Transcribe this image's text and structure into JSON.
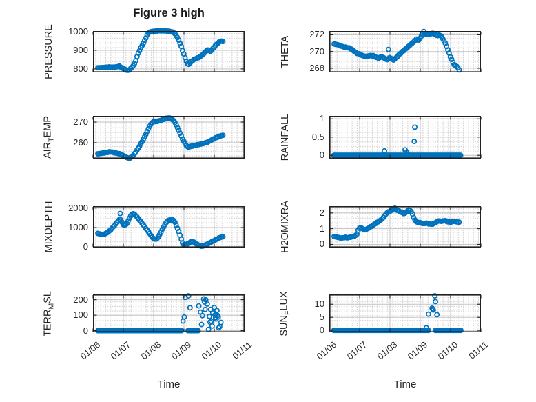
{
  "figure": {
    "title": "Figure 3 high",
    "x_axis_label": "Time",
    "x_tick_labels": [
      "01/06",
      "01/07",
      "01/08",
      "01/09",
      "01/10",
      "01/11"
    ],
    "x_tick_days": [
      6,
      7,
      8,
      9,
      10,
      11
    ],
    "x_range_days": [
      6,
      11
    ],
    "marker_color": "#0072BD",
    "axis_color": "#212121",
    "major_grid_color": "#c3c3c3",
    "minor_grid_color": "#cdcdcd",
    "text_color": "#262626"
  },
  "chart_data": [
    {
      "type": "scatter",
      "name": "PRESSURE",
      "marker": "o",
      "label_parts": [
        {
          "t": "PRESSURE"
        }
      ],
      "ylim": [
        781,
        1004
      ],
      "yticks": [
        800,
        900,
        1000
      ],
      "ytick_labels": [
        "800",
        "900",
        "1000"
      ],
      "series_mode": "continuous",
      "anchors": [
        [
          6.16,
          806
        ],
        [
          6.3,
          807
        ],
        [
          6.45,
          809
        ],
        [
          6.6,
          810
        ],
        [
          6.7,
          808
        ],
        [
          6.8,
          812
        ],
        [
          6.87,
          815
        ],
        [
          6.95,
          806
        ],
        [
          7.05,
          798
        ],
        [
          7.14,
          791
        ],
        [
          7.22,
          797
        ],
        [
          7.3,
          812
        ],
        [
          7.38,
          830
        ],
        [
          7.48,
          880
        ],
        [
          7.58,
          915
        ],
        [
          7.66,
          938
        ],
        [
          7.74,
          966
        ],
        [
          7.8,
          988
        ],
        [
          7.85,
          997
        ],
        [
          7.92,
          1001
        ],
        [
          8.0,
          1003
        ],
        [
          8.1,
          1004
        ],
        [
          8.2,
          1006
        ],
        [
          8.3,
          1006
        ],
        [
          8.4,
          1005
        ],
        [
          8.5,
          1003
        ],
        [
          8.6,
          1000
        ],
        [
          8.69,
          993
        ],
        [
          8.76,
          975
        ],
        [
          8.81,
          962
        ],
        [
          8.87,
          938
        ],
        [
          8.92,
          916
        ],
        [
          8.97,
          890
        ],
        [
          9.02,
          868
        ],
        [
          9.07,
          844
        ],
        [
          9.13,
          822
        ],
        [
          9.18,
          828
        ],
        [
          9.25,
          840
        ],
        [
          9.31,
          849
        ],
        [
          9.4,
          856
        ],
        [
          9.5,
          862
        ],
        [
          9.6,
          874
        ],
        [
          9.7,
          890
        ],
        [
          9.78,
          903
        ],
        [
          9.83,
          899
        ],
        [
          9.88,
          894
        ],
        [
          9.94,
          906
        ],
        [
          10.0,
          918
        ],
        [
          10.06,
          930
        ],
        [
          10.13,
          940
        ],
        [
          10.2,
          949
        ],
        [
          10.26,
          950
        ],
        [
          10.31,
          944
        ]
      ]
    },
    {
      "type": "scatter",
      "name": "THETA",
      "marker": "o",
      "label_parts": [
        {
          "t": "THETA"
        }
      ],
      "ylim": [
        267.5,
        272.45
      ],
      "yticks": [
        268,
        270,
        272
      ],
      "ytick_labels": [
        "268",
        "270",
        "272"
      ],
      "series_mode": "continuous",
      "anchors": [
        [
          6.16,
          270.9
        ],
        [
          6.3,
          270.8
        ],
        [
          6.42,
          270.6
        ],
        [
          6.55,
          270.5
        ],
        [
          6.68,
          270.4
        ],
        [
          6.8,
          270.1
        ],
        [
          6.9,
          269.8
        ],
        [
          7.0,
          269.7
        ],
        [
          7.1,
          269.5
        ],
        [
          7.2,
          269.4
        ],
        [
          7.32,
          269.5
        ],
        [
          7.45,
          269.5
        ],
        [
          7.55,
          269.3
        ],
        [
          7.63,
          269.2
        ],
        [
          7.72,
          269.4
        ],
        [
          7.82,
          269.2
        ],
        [
          7.9,
          269.0
        ],
        [
          8.0,
          269.3
        ],
        [
          8.06,
          269.1
        ],
        [
          8.12,
          269.0
        ],
        [
          8.22,
          269.3
        ],
        [
          8.32,
          269.7
        ],
        [
          8.45,
          270.1
        ],
        [
          8.58,
          270.5
        ],
        [
          8.7,
          270.9
        ],
        [
          8.8,
          271.2
        ],
        [
          8.87,
          271.5
        ],
        [
          8.93,
          271.3
        ],
        [
          9.0,
          271.6
        ],
        [
          9.06,
          272.0
        ],
        [
          9.11,
          272.4
        ],
        [
          9.17,
          272.1
        ],
        [
          9.25,
          272.0
        ],
        [
          9.33,
          272.1
        ],
        [
          9.42,
          272.2
        ],
        [
          9.5,
          272.0
        ],
        [
          9.57,
          271.9
        ],
        [
          9.63,
          272.0
        ],
        [
          9.7,
          271.8
        ],
        [
          9.78,
          271.3
        ],
        [
          9.85,
          270.8
        ],
        [
          9.92,
          270.1
        ],
        [
          9.98,
          269.5
        ],
        [
          10.04,
          269.0
        ],
        [
          10.1,
          268.5
        ],
        [
          10.16,
          268.3
        ],
        [
          10.22,
          268.2
        ],
        [
          10.27,
          267.9
        ],
        [
          10.31,
          267.6
        ]
      ],
      "points": [
        [
          7.95,
          270.25
        ]
      ]
    },
    {
      "type": "scatter",
      "name": "AIR_TEMP",
      "marker": "o",
      "label_parts": [
        {
          "t": "AIR"
        },
        {
          "t": "T",
          "sub": true
        },
        {
          "t": "EMP"
        }
      ],
      "ylim": [
        252.3,
        273.0
      ],
      "yticks": [
        260,
        270
      ],
      "ytick_labels": [
        "260",
        "270"
      ],
      "series_mode": "continuous",
      "anchors": [
        [
          6.16,
          254.6
        ],
        [
          6.3,
          254.9
        ],
        [
          6.45,
          255.3
        ],
        [
          6.58,
          255.6
        ],
        [
          6.7,
          255.2
        ],
        [
          6.82,
          254.8
        ],
        [
          6.92,
          254.4
        ],
        [
          7.02,
          253.6
        ],
        [
          7.12,
          252.8
        ],
        [
          7.2,
          252.4
        ],
        [
          7.3,
          253.4
        ],
        [
          7.4,
          255.2
        ],
        [
          7.5,
          257.5
        ],
        [
          7.6,
          260.0
        ],
        [
          7.7,
          262.8
        ],
        [
          7.78,
          265.2
        ],
        [
          7.86,
          267.8
        ],
        [
          7.93,
          269.4
        ],
        [
          8.0,
          270.2
        ],
        [
          8.1,
          270.3
        ],
        [
          8.2,
          270.6
        ],
        [
          8.3,
          271.2
        ],
        [
          8.42,
          271.8
        ],
        [
          8.52,
          272.0
        ],
        [
          8.6,
          271.4
        ],
        [
          8.68,
          270.4
        ],
        [
          8.74,
          268.8
        ],
        [
          8.8,
          266.8
        ],
        [
          8.87,
          264.6
        ],
        [
          8.94,
          262.2
        ],
        [
          9.0,
          260.4
        ],
        [
          9.07,
          258.8
        ],
        [
          9.13,
          257.8
        ],
        [
          9.2,
          258.1
        ],
        [
          9.3,
          258.5
        ],
        [
          9.42,
          258.9
        ],
        [
          9.55,
          259.3
        ],
        [
          9.68,
          259.8
        ],
        [
          9.8,
          260.4
        ],
        [
          9.92,
          261.4
        ],
        [
          10.03,
          262.2
        ],
        [
          10.13,
          262.9
        ],
        [
          10.22,
          263.4
        ],
        [
          10.31,
          263.6
        ]
      ]
    },
    {
      "type": "scatter",
      "name": "RAINFALL",
      "marker": "o",
      "label_parts": [
        {
          "t": "RAINFALL"
        }
      ],
      "ylim": [
        -0.09,
        1.08
      ],
      "yticks": [
        0,
        0.5,
        1
      ],
      "ytick_labels": [
        "0",
        "0.5",
        "1"
      ],
      "series_mode": "events",
      "zero_runs": [
        [
          6.15,
          10.33
        ]
      ],
      "points": [
        [
          7.82,
          0.12
        ],
        [
          8.5,
          0.15
        ],
        [
          8.55,
          0.08
        ],
        [
          8.58,
          0.03
        ],
        [
          8.8,
          0.38
        ],
        [
          8.82,
          0.77
        ]
      ]
    },
    {
      "type": "scatter",
      "name": "MIXDEPTH",
      "marker": "o",
      "label_parts": [
        {
          "t": "MIXDEPTH"
        }
      ],
      "ylim": [
        -25,
        2095
      ],
      "yticks": [
        0,
        1000,
        2000
      ],
      "ytick_labels": [
        "0",
        "1000",
        "2000"
      ],
      "series_mode": "continuous",
      "anchors": [
        [
          6.16,
          700
        ],
        [
          6.25,
          660
        ],
        [
          6.35,
          640
        ],
        [
          6.45,
          720
        ],
        [
          6.55,
          830
        ],
        [
          6.65,
          1000
        ],
        [
          6.75,
          1180
        ],
        [
          6.82,
          1330
        ],
        [
          6.89,
          1430
        ],
        [
          6.93,
          1380
        ],
        [
          6.98,
          1160
        ],
        [
          7.05,
          1120
        ],
        [
          7.12,
          1200
        ],
        [
          7.2,
          1480
        ],
        [
          7.28,
          1680
        ],
        [
          7.34,
          1720
        ],
        [
          7.42,
          1600
        ],
        [
          7.5,
          1450
        ],
        [
          7.58,
          1300
        ],
        [
          7.66,
          1130
        ],
        [
          7.74,
          960
        ],
        [
          7.82,
          800
        ],
        [
          7.9,
          620
        ],
        [
          7.96,
          480
        ],
        [
          8.02,
          420
        ],
        [
          8.08,
          400
        ],
        [
          8.15,
          500
        ],
        [
          8.22,
          700
        ],
        [
          8.3,
          950
        ],
        [
          8.38,
          1180
        ],
        [
          8.45,
          1320
        ],
        [
          8.52,
          1400
        ],
        [
          8.58,
          1360
        ],
        [
          8.63,
          1420
        ],
        [
          8.7,
          1280
        ],
        [
          8.76,
          1060
        ],
        [
          8.82,
          820
        ],
        [
          8.88,
          560
        ],
        [
          8.93,
          300
        ],
        [
          8.98,
          120
        ],
        [
          9.05,
          90
        ],
        [
          9.12,
          160
        ],
        [
          9.2,
          240
        ],
        [
          9.28,
          280
        ],
        [
          9.35,
          230
        ],
        [
          9.42,
          150
        ],
        [
          9.5,
          80
        ],
        [
          9.58,
          40
        ],
        [
          9.65,
          60
        ],
        [
          9.72,
          110
        ],
        [
          9.8,
          170
        ],
        [
          9.88,
          240
        ],
        [
          9.95,
          300
        ],
        [
          10.03,
          360
        ],
        [
          10.1,
          420
        ],
        [
          10.18,
          480
        ],
        [
          10.25,
          530
        ],
        [
          10.31,
          510
        ]
      ],
      "points": [
        [
          6.9,
          1720
        ]
      ]
    },
    {
      "type": "scatter",
      "name": "H2OMIXRA",
      "marker": "o",
      "label_parts": [
        {
          "t": "H2OMIXRA"
        }
      ],
      "ylim": [
        -0.2,
        2.43
      ],
      "yticks": [
        0,
        1,
        2
      ],
      "ytick_labels": [
        "0",
        "1",
        "2"
      ],
      "series_mode": "continuous",
      "anchors": [
        [
          6.16,
          0.5
        ],
        [
          6.28,
          0.45
        ],
        [
          6.4,
          0.4
        ],
        [
          6.52,
          0.45
        ],
        [
          6.62,
          0.42
        ],
        [
          6.72,
          0.48
        ],
        [
          6.82,
          0.52
        ],
        [
          6.9,
          0.6
        ],
        [
          6.96,
          0.95
        ],
        [
          7.02,
          1.08
        ],
        [
          7.08,
          1.02
        ],
        [
          7.15,
          0.92
        ],
        [
          7.22,
          0.95
        ],
        [
          7.3,
          1.05
        ],
        [
          7.4,
          1.15
        ],
        [
          7.5,
          1.3
        ],
        [
          7.6,
          1.42
        ],
        [
          7.7,
          1.55
        ],
        [
          7.78,
          1.7
        ],
        [
          7.86,
          1.92
        ],
        [
          7.93,
          2.05
        ],
        [
          8.0,
          2.1
        ],
        [
          8.08,
          2.22
        ],
        [
          8.16,
          2.3
        ],
        [
          8.24,
          2.18
        ],
        [
          8.32,
          2.1
        ],
        [
          8.4,
          2.02
        ],
        [
          8.48,
          1.95
        ],
        [
          8.55,
          2.08
        ],
        [
          8.62,
          2.18
        ],
        [
          8.68,
          2.15
        ],
        [
          8.74,
          1.95
        ],
        [
          8.8,
          1.62
        ],
        [
          8.86,
          1.45
        ],
        [
          8.92,
          1.4
        ],
        [
          9.0,
          1.38
        ],
        [
          9.1,
          1.32
        ],
        [
          9.2,
          1.36
        ],
        [
          9.3,
          1.3
        ],
        [
          9.4,
          1.28
        ],
        [
          9.5,
          1.38
        ],
        [
          9.6,
          1.5
        ],
        [
          9.7,
          1.46
        ],
        [
          9.8,
          1.52
        ],
        [
          9.9,
          1.44
        ],
        [
          10.0,
          1.4
        ],
        [
          10.1,
          1.48
        ],
        [
          10.2,
          1.44
        ],
        [
          10.31,
          1.4
        ]
      ]
    },
    {
      "type": "scatter",
      "name": "TERR_MSL",
      "marker": "o",
      "label_parts": [
        {
          "t": "TERR"
        },
        {
          "t": "M",
          "sub": true
        },
        {
          "t": "SL"
        }
      ],
      "ylim": [
        -11,
        234
      ],
      "yticks": [
        0,
        100,
        200
      ],
      "ytick_labels": [
        "0",
        "100",
        "200"
      ],
      "series_mode": "events",
      "zero_runs": [
        [
          6.16,
          8.92
        ],
        [
          9.13,
          9.47
        ]
      ],
      "points": [
        [
          8.97,
          62
        ],
        [
          9.01,
          88
        ],
        [
          9.04,
          215
        ],
        [
          9.15,
          225
        ],
        [
          9.2,
          148
        ],
        [
          9.49,
          160
        ],
        [
          9.54,
          120
        ],
        [
          9.58,
          40
        ],
        [
          9.61,
          97
        ],
        [
          9.65,
          205
        ],
        [
          9.68,
          185
        ],
        [
          9.7,
          137
        ],
        [
          9.72,
          200
        ],
        [
          9.77,
          172
        ],
        [
          9.81,
          8
        ],
        [
          9.84,
          92
        ],
        [
          9.86,
          55
        ],
        [
          9.88,
          137
        ],
        [
          9.9,
          62
        ],
        [
          9.93,
          30
        ],
        [
          9.95,
          114
        ],
        [
          10.0,
          150
        ],
        [
          10.02,
          100
        ],
        [
          10.04,
          84
        ],
        [
          10.06,
          75
        ],
        [
          10.09,
          130
        ],
        [
          10.11,
          97
        ],
        [
          10.13,
          88
        ],
        [
          10.15,
          18
        ],
        [
          10.18,
          26
        ],
        [
          10.22,
          53
        ]
      ]
    },
    {
      "type": "scatter",
      "name": "SUN_FLUX",
      "marker": "o",
      "label_parts": [
        {
          "t": "SUN"
        },
        {
          "t": "F",
          "sub": true
        },
        {
          "t": "LUX"
        }
      ],
      "ylim": [
        -0.75,
        13.75
      ],
      "yticks": [
        0,
        5,
        10
      ],
      "ytick_labels": [
        "0",
        "5",
        "10"
      ],
      "series_mode": "events",
      "zero_runs": [
        [
          6.15,
          9.27
        ],
        [
          9.5,
          10.34
        ]
      ],
      "points": [
        [
          9.2,
          1.0
        ],
        [
          9.27,
          6.2
        ],
        [
          9.39,
          8.5
        ],
        [
          9.41,
          8.1
        ],
        [
          9.43,
          7.8
        ],
        [
          9.48,
          13.2
        ],
        [
          9.5,
          11.0
        ],
        [
          9.55,
          6.0
        ]
      ]
    }
  ]
}
